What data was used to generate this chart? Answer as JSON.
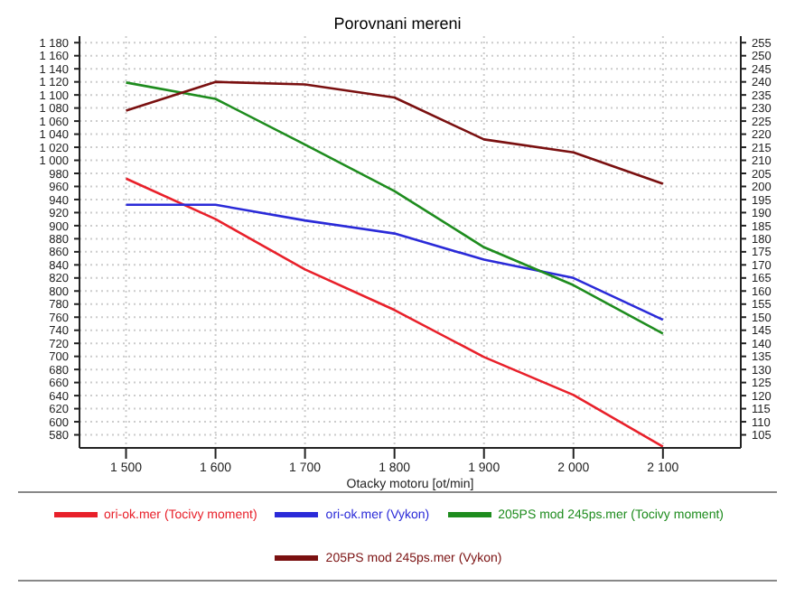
{
  "chart_data": {
    "type": "line",
    "title": "Porovnani mereni",
    "xlabel": "Otacky motoru [ot/min]",
    "x": [
      1500,
      1600,
      1700,
      1800,
      1900,
      2000,
      2100
    ],
    "xlim": [
      1448,
      2187
    ],
    "xticks": [
      {
        "value": 1500,
        "label": "1 500"
      },
      {
        "value": 1600,
        "label": "1 600"
      },
      {
        "value": 1700,
        "label": "1 700"
      },
      {
        "value": 1800,
        "label": "1 800"
      },
      {
        "value": 1900,
        "label": "1 900"
      },
      {
        "value": 2000,
        "label": "2 000"
      },
      {
        "value": 2100,
        "label": "2 100"
      }
    ],
    "ylim": [
      560,
      1190
    ],
    "yticks": [
      580,
      600,
      620,
      640,
      660,
      680,
      700,
      720,
      740,
      760,
      780,
      800,
      820,
      840,
      860,
      880,
      900,
      920,
      940,
      960,
      980,
      {
        "value": 1000,
        "label": "1 000"
      },
      {
        "value": 1020,
        "label": "1 020"
      },
      {
        "value": 1040,
        "label": "1 040"
      },
      {
        "value": 1060,
        "label": "1 060"
      },
      {
        "value": 1080,
        "label": "1 080"
      },
      {
        "value": 1100,
        "label": "1 100"
      },
      {
        "value": 1120,
        "label": "1 120"
      },
      {
        "value": 1140,
        "label": "1 140"
      },
      {
        "value": 1160,
        "label": "1 160"
      },
      {
        "value": 1180,
        "label": "1 180"
      }
    ],
    "y2lim": [
      100,
      257.5
    ],
    "y2ticks": [
      105,
      110,
      115,
      120,
      125,
      130,
      135,
      140,
      145,
      150,
      155,
      160,
      165,
      170,
      175,
      180,
      185,
      190,
      195,
      200,
      205,
      210,
      215,
      220,
      225,
      230,
      235,
      240,
      245,
      250,
      255
    ],
    "grid": true,
    "legend": "bottom",
    "marker": "none",
    "line_style": "solid",
    "series": [
      {
        "name": "ori-ok.mer  (Tocivy moment)",
        "color": "#e8202a",
        "values": [
          972,
          910,
          833,
          771,
          699,
          641,
          562
        ]
      },
      {
        "name": "ori-ok.mer  (Vykon)",
        "color": "#2a2ad8",
        "axis": "y2",
        "values": [
          193,
          193,
          187,
          182,
          172,
          165,
          149
        ]
      },
      {
        "name": "205PS mod 245ps.mer  (Tocivy moment)",
        "color": "#1e8c1e",
        "values": [
          1119,
          1094,
          1024,
          953,
          867,
          809,
          735
        ]
      },
      {
        "name": "205PS mod 245ps.mer  (Vykon)",
        "color": "#7a1010",
        "axis": "y2",
        "values": [
          229,
          240,
          239,
          234,
          218,
          213,
          201
        ]
      }
    ]
  }
}
